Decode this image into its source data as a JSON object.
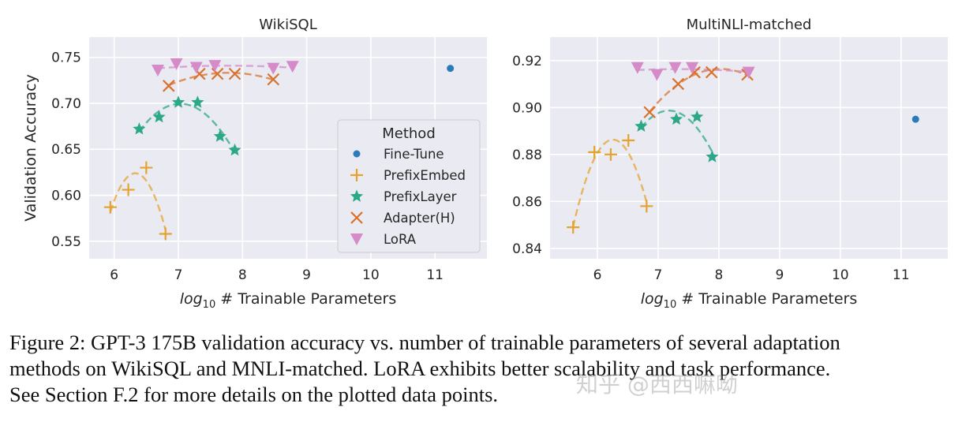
{
  "chart_data": [
    {
      "type": "scatter",
      "title": "WikiSQL",
      "xlabel": "log10 # Trainable Parameters",
      "ylabel": "Validation Accuracy",
      "xlim": [
        5.61,
        11.81
      ],
      "ylim": [
        0.531,
        0.772
      ],
      "xticks": [
        6,
        7,
        8,
        9,
        10,
        11
      ],
      "yticks": [
        0.55,
        0.6,
        0.65,
        0.7,
        0.75
      ],
      "grid": true,
      "legend": {
        "title": "Method",
        "placement": "center-right"
      },
      "series": [
        {
          "name": "Fine-Tune",
          "marker": "circle",
          "color": "#2b7bba",
          "fit": false,
          "x": [
            11.24
          ],
          "y": [
            0.738
          ]
        },
        {
          "name": "PrefixEmbed",
          "marker": "plus",
          "color": "#e5a32e",
          "fit": true,
          "x": [
            5.94,
            6.22,
            6.5,
            6.8
          ],
          "y": [
            0.587,
            0.606,
            0.63,
            0.558
          ]
        },
        {
          "name": "PrefixLayer",
          "marker": "star",
          "color": "#2aa888",
          "fit": true,
          "x": [
            6.39,
            6.7,
            7.0,
            7.3,
            7.65,
            7.88
          ],
          "y": [
            0.672,
            0.685,
            0.701,
            0.701,
            0.664,
            0.649
          ]
        },
        {
          "name": "Adapter(H)",
          "marker": "x",
          "color": "#d9712b",
          "fit": true,
          "x": [
            6.85,
            7.33,
            7.61,
            7.88,
            8.48
          ],
          "y": [
            0.719,
            0.732,
            0.732,
            0.732,
            0.726
          ]
        },
        {
          "name": "LoRA",
          "marker": "triangle-down",
          "color": "#d68bc9",
          "fit": true,
          "x": [
            6.68,
            6.97,
            7.28,
            7.57,
            8.48,
            8.78
          ],
          "y": [
            0.736,
            0.743,
            0.739,
            0.741,
            0.738,
            0.74
          ]
        }
      ]
    },
    {
      "type": "scatter",
      "title": "MultiNLI-matched",
      "xlabel": "log10 # Trainable Parameters",
      "ylabel": "",
      "xlim": [
        5.22,
        11.77
      ],
      "ylim": [
        0.8356,
        0.93
      ],
      "xticks": [
        6,
        7,
        8,
        9,
        10,
        11
      ],
      "yticks": [
        0.84,
        0.86,
        0.88,
        0.9,
        0.92
      ],
      "grid": true,
      "series": [
        {
          "name": "Fine-Tune",
          "marker": "circle",
          "color": "#2b7bba",
          "fit": false,
          "x": [
            11.24
          ],
          "y": [
            0.895
          ]
        },
        {
          "name": "PrefixEmbed",
          "marker": "plus",
          "color": "#e5a32e",
          "fit": true,
          "x": [
            5.6,
            5.95,
            6.22,
            6.51,
            6.81
          ],
          "y": [
            0.849,
            0.881,
            0.88,
            0.886,
            0.858
          ]
        },
        {
          "name": "PrefixLayer",
          "marker": "star",
          "color": "#2aa888",
          "fit": true,
          "x": [
            6.72,
            7.3,
            7.64,
            7.89
          ],
          "y": [
            0.892,
            0.895,
            0.896,
            0.879
          ]
        },
        {
          "name": "Adapter(H)",
          "marker": "x",
          "color": "#d9712b",
          "fit": true,
          "x": [
            6.86,
            7.33,
            7.6,
            7.88,
            8.47
          ],
          "y": [
            0.898,
            0.91,
            0.915,
            0.915,
            0.914
          ]
        },
        {
          "name": "LoRA",
          "marker": "triangle-down",
          "color": "#d68bc9",
          "fit": true,
          "x": [
            6.66,
            6.98,
            7.28,
            7.56,
            8.49
          ],
          "y": [
            0.917,
            0.914,
            0.917,
            0.917,
            0.915
          ]
        }
      ]
    }
  ],
  "caption": {
    "lines": [
      "Figure 2: GPT-3 175B validation accuracy vs. number of trainable parameters of several adaptation",
      "methods on WikiSQL and MNLI-matched. LoRA exhibits better scalability and task performance.",
      "See Section F.2 for more details on the plotted data points."
    ]
  },
  "watermark": "知乎 @西西嘛呦",
  "colors": {
    "plot_background": "#eaeaf2",
    "grid": "#ffffff"
  }
}
